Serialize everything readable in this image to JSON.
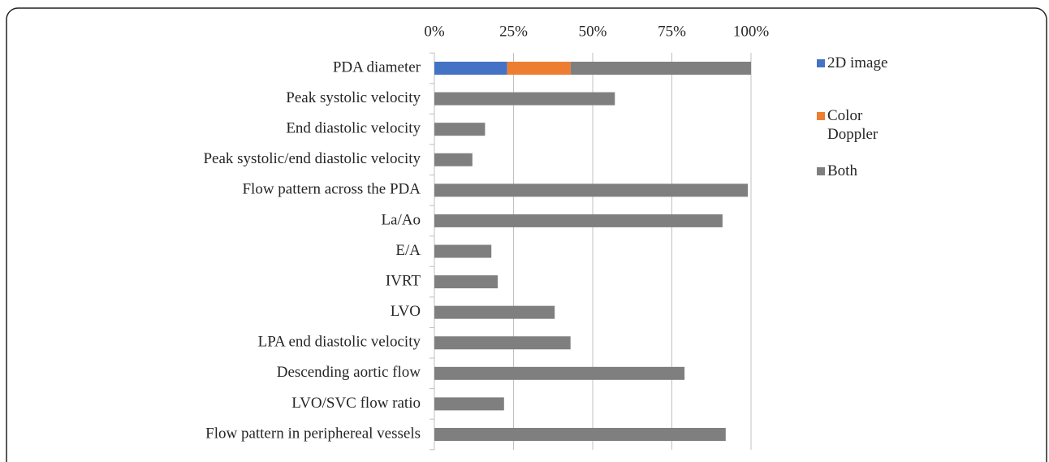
{
  "chart_data": {
    "type": "stacked-barh",
    "categories": [
      "PDA diameter",
      "Peak systolic velocity",
      "End diastolic velocity",
      "Peak systolic/end diastolic velocity",
      "Flow pattern across the PDA",
      "La/Ao",
      "E/A",
      "IVRT",
      "LVO",
      "LPA end diastolic velocity",
      "Descending aortic flow",
      "LVO/SVC flow ratio",
      "Flow pattern in periphereal vessels"
    ],
    "series": [
      {
        "name": "2D image",
        "color": "#4472c4",
        "values": [
          23,
          null,
          null,
          null,
          null,
          null,
          null,
          null,
          null,
          null,
          null,
          null,
          null
        ]
      },
      {
        "name": "Color Doppler",
        "color": "#ed7d31",
        "values": [
          20,
          null,
          null,
          null,
          null,
          null,
          null,
          null,
          null,
          null,
          null,
          null,
          null
        ]
      },
      {
        "name": "Both",
        "color": "#7f7f7f",
        "values": [
          57,
          57,
          16,
          12,
          99,
          91,
          18,
          20,
          38,
          43,
          79,
          22,
          92
        ]
      }
    ],
    "xlim": [
      0,
      100
    ],
    "xticks": [
      {
        "value": 0,
        "label": "0%"
      },
      {
        "value": 25,
        "label": "25%"
      },
      {
        "value": 50,
        "label": "50%"
      },
      {
        "value": 75,
        "label": "75%"
      },
      {
        "value": 100,
        "label": "100%"
      }
    ],
    "grid": true,
    "legend": "right"
  }
}
